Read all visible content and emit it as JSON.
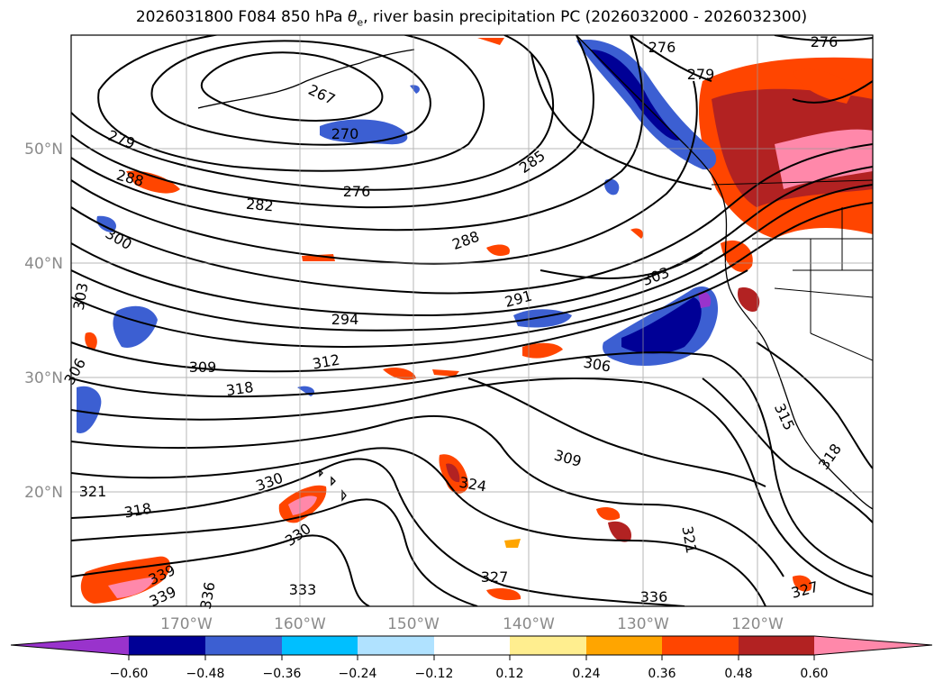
{
  "title": {
    "prefix": "2026031800 F084 850 hPa ",
    "symbol": "θ",
    "subscript": "e",
    "suffix": ", river basin precipitation PC (2026032000 - 2026032300)"
  },
  "lat_labels": [
    "50°N",
    "40°N",
    "30°N",
    "20°N"
  ],
  "lon_labels": [
    "170°W",
    "160°W",
    "150°W",
    "140°W",
    "130°W",
    "120°W"
  ],
  "contour_labels": [
    "276",
    "276",
    "279",
    "267",
    "270",
    "279",
    "288",
    "282",
    "276",
    "285",
    "300",
    "288",
    "303",
    "303",
    "291",
    "294",
    "306",
    "312",
    "309",
    "318",
    "306",
    "315",
    "309",
    "318",
    "324",
    "330",
    "321",
    "318",
    "330",
    "321",
    "327",
    "339",
    "339",
    "333",
    "336",
    "336",
    "327"
  ],
  "colorbar": {
    "colors": [
      "#9933cc",
      "#000096",
      "#3c5fd2",
      "#00bfff",
      "#b0e2ff",
      "#ffffff",
      "#ffee8f",
      "#ffa500",
      "#ff4500",
      "#b22222",
      "#ff88aa"
    ],
    "tick_labels": [
      "−0.60",
      "−0.48",
      "−0.36",
      "−0.24",
      "−0.12",
      "0.12",
      "0.24",
      "0.36",
      "0.48",
      "0.60"
    ]
  }
}
